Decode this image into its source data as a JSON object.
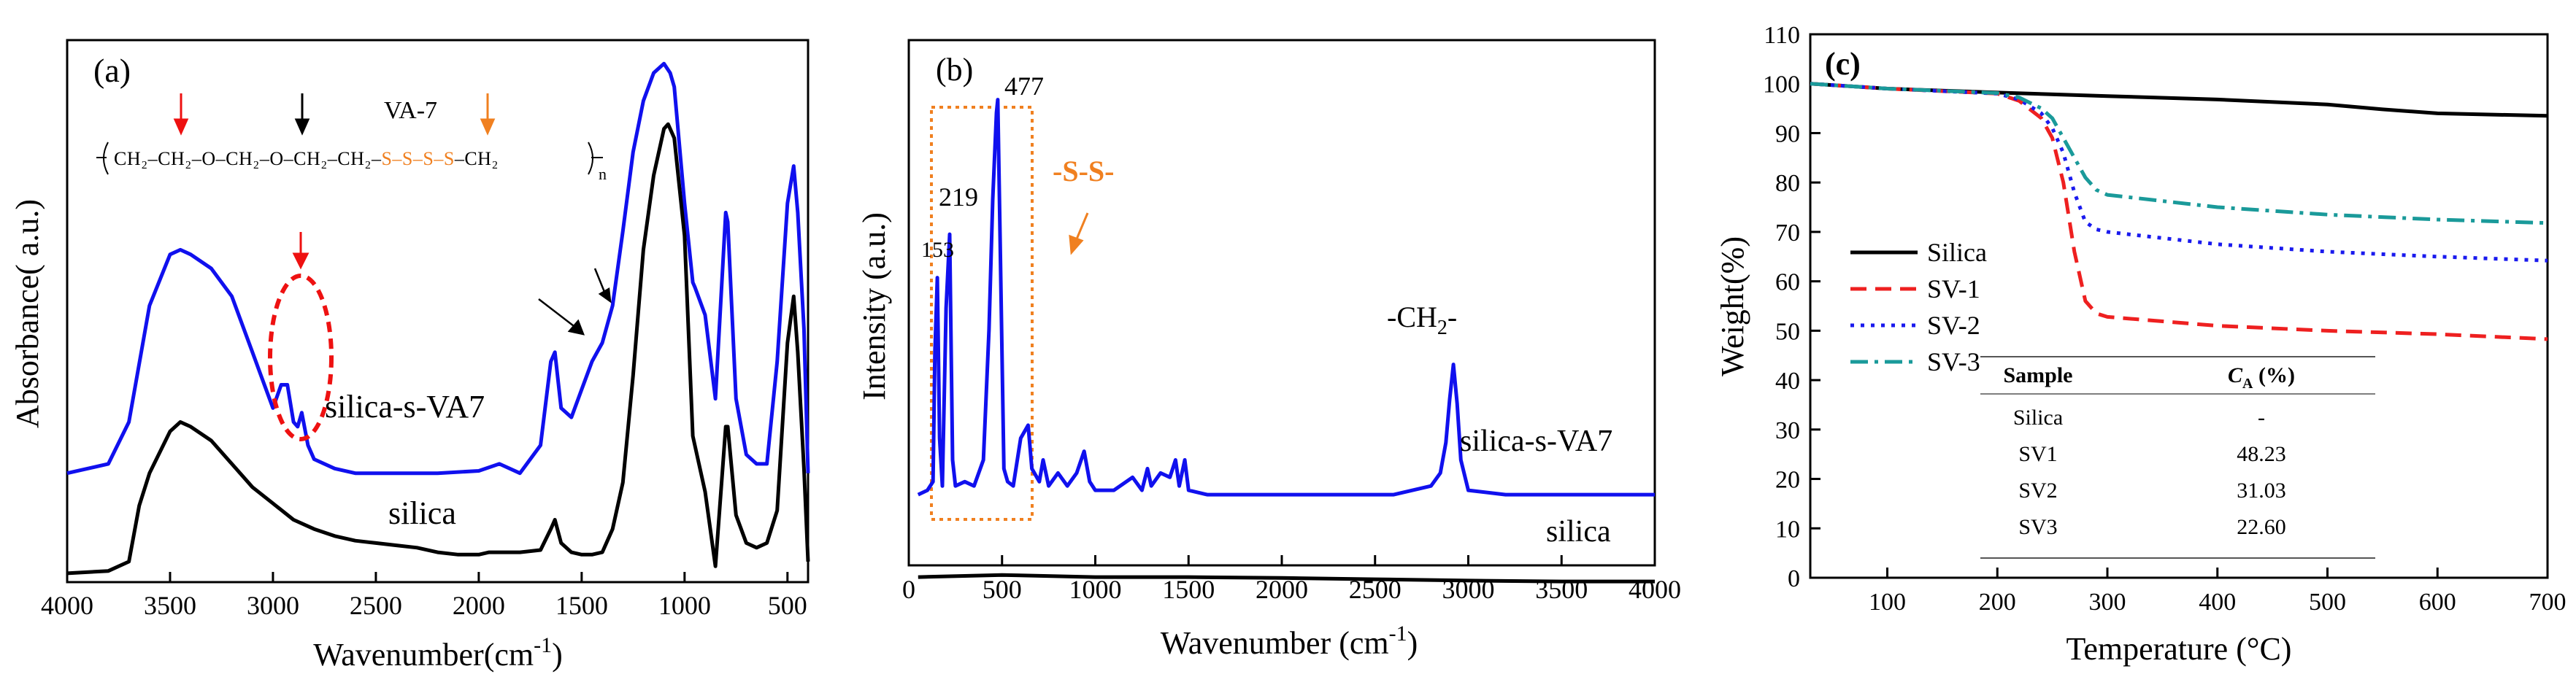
{
  "chart_data": [
    {
      "type": "line",
      "panel_label": "(a)",
      "xlabel": "Wavenumber(cm",
      "xlabel_sup": "-1",
      "xlabel_close": ")",
      "ylabel": "Absorbance( a.u.)",
      "xlim": [
        4000,
        400
      ],
      "x_ticks": [
        4000,
        3500,
        3000,
        2500,
        2000,
        1500,
        1000,
        500
      ],
      "series": [
        {
          "name": "silica-s-VA7",
          "color": "#1010ee",
          "x": [
            4000,
            3800,
            3700,
            3600,
            3500,
            3450,
            3400,
            3300,
            3200,
            3100,
            3000,
            2960,
            2930,
            2900,
            2880,
            2860,
            2830,
            2800,
            2700,
            2600,
            2400,
            2200,
            2000,
            1900,
            1800,
            1700,
            1650,
            1630,
            1600,
            1550,
            1500,
            1450,
            1400,
            1350,
            1300,
            1250,
            1200,
            1150,
            1100,
            1070,
            1050,
            1000,
            960,
            950,
            900,
            850,
            800,
            790,
            750,
            700,
            650,
            600,
            550,
            500,
            470,
            450,
            420,
            400
          ],
          "y": [
            0.14,
            0.16,
            0.25,
            0.5,
            0.61,
            0.62,
            0.61,
            0.58,
            0.52,
            0.4,
            0.28,
            0.33,
            0.33,
            0.25,
            0.24,
            0.27,
            0.2,
            0.17,
            0.15,
            0.14,
            0.14,
            0.14,
            0.145,
            0.16,
            0.14,
            0.2,
            0.38,
            0.4,
            0.28,
            0.26,
            0.32,
            0.38,
            0.42,
            0.5,
            0.66,
            0.83,
            0.94,
            1.0,
            1.02,
            1.0,
            0.97,
            0.72,
            0.55,
            0.54,
            0.48,
            0.3,
            0.7,
            0.68,
            0.3,
            0.18,
            0.16,
            0.16,
            0.38,
            0.72,
            0.8,
            0.7,
            0.45,
            0.14
          ]
        },
        {
          "name": "silica",
          "color": "#000000",
          "x": [
            4000,
            3800,
            3700,
            3650,
            3600,
            3500,
            3450,
            3400,
            3300,
            3200,
            3100,
            3000,
            2900,
            2800,
            2700,
            2600,
            2500,
            2400,
            2300,
            2200,
            2100,
            2000,
            1950,
            1900,
            1870,
            1800,
            1700,
            1650,
            1630,
            1600,
            1550,
            1500,
            1450,
            1400,
            1350,
            1300,
            1250,
            1200,
            1150,
            1100,
            1080,
            1050,
            1000,
            960,
            950,
            900,
            850,
            800,
            790,
            750,
            700,
            650,
            600,
            550,
            500,
            470,
            450,
            420,
            400
          ],
          "y": [
            -0.075,
            -0.07,
            -0.05,
            0.07,
            0.14,
            0.23,
            0.25,
            0.24,
            0.21,
            0.16,
            0.11,
            0.075,
            0.04,
            0.02,
            0.005,
            -0.005,
            -0.01,
            -0.015,
            -0.02,
            -0.03,
            -0.035,
            -0.035,
            -0.03,
            -0.03,
            -0.03,
            -0.03,
            -0.025,
            0.02,
            0.04,
            -0.01,
            -0.03,
            -0.035,
            -0.035,
            -0.03,
            0.02,
            0.12,
            0.35,
            0.62,
            0.78,
            0.88,
            0.89,
            0.86,
            0.65,
            0.22,
            0.2,
            0.1,
            -0.06,
            0.24,
            0.24,
            0.05,
            -0.01,
            -0.02,
            -0.01,
            0.06,
            0.42,
            0.52,
            0.4,
            0.15,
            -0.05
          ]
        }
      ],
      "series_labels": [
        "silica-s-VA7",
        "silica"
      ],
      "annotations": {
        "formula_name": "VA-7",
        "formula": "CH₂–CH₂–O–CH₂–O–CH₂–CH₂–S–S–S–S–CH₂",
        "formula_sub": "n",
        "formula_colors": {
          "red": "#ee1111",
          "black": "#000000",
          "orange": "#f08020"
        }
      }
    },
    {
      "type": "line",
      "panel_label": "(b)",
      "xlabel": "Wavenumber (cm",
      "xlabel_sup": "-1",
      "xlabel_close": ")",
      "ylabel": "Intensity (a.u.)",
      "xlim": [
        0,
        4000
      ],
      "x_ticks": [
        0,
        500,
        1000,
        1500,
        2000,
        2500,
        3000,
        3500,
        4000
      ],
      "series": [
        {
          "name": "silica-s-VA7",
          "color": "#1010ee",
          "x": [
            50,
            100,
            130,
            140,
            153,
            165,
            180,
            200,
            219,
            235,
            250,
            300,
            350,
            400,
            430,
            450,
            470,
            477,
            490,
            510,
            530,
            560,
            600,
            640,
            660,
            700,
            720,
            750,
            800,
            850,
            900,
            940,
            970,
            1000,
            1100,
            1200,
            1250,
            1280,
            1300,
            1350,
            1400,
            1430,
            1450,
            1480,
            1500,
            1600,
            1800,
            2000,
            2200,
            2400,
            2600,
            2800,
            2850,
            2880,
            2900,
            2920,
            2940,
            2960,
            3000,
            3200,
            3400,
            3600,
            3800,
            4000
          ],
          "y": [
            0.02,
            0.03,
            0.05,
            0.35,
            0.52,
            0.15,
            0.04,
            0.45,
            0.62,
            0.1,
            0.04,
            0.05,
            0.04,
            0.1,
            0.4,
            0.7,
            0.9,
            0.93,
            0.6,
            0.08,
            0.05,
            0.04,
            0.15,
            0.18,
            0.08,
            0.05,
            0.1,
            0.04,
            0.07,
            0.04,
            0.07,
            0.12,
            0.05,
            0.03,
            0.03,
            0.06,
            0.03,
            0.08,
            0.04,
            0.07,
            0.06,
            0.1,
            0.04,
            0.1,
            0.03,
            0.02,
            0.02,
            0.02,
            0.02,
            0.02,
            0.02,
            0.04,
            0.07,
            0.14,
            0.24,
            0.32,
            0.23,
            0.1,
            0.03,
            0.02,
            0.02,
            0.02,
            0.02,
            0.02
          ]
        },
        {
          "name": "silica",
          "color": "#000000",
          "x": [
            50,
            500,
            1000,
            1500,
            2000,
            2500,
            3000,
            3500,
            4000
          ],
          "y": [
            -0.17,
            -0.165,
            -0.17,
            -0.17,
            -0.172,
            -0.175,
            -0.178,
            -0.18,
            -0.18
          ]
        }
      ],
      "series_labels": [
        "silica-s-VA7",
        "silica"
      ],
      "peak_labels": [
        "153",
        "219",
        "477"
      ],
      "annotations": {
        "ss_label": "-S-S-",
        "ch2_label": "-CH",
        "ch2_sub": "2",
        "ch2_tail": "-"
      }
    },
    {
      "type": "line",
      "panel_label": "(c)",
      "xlabel": "Temperature (°C)",
      "ylabel": "Weight(%)",
      "xlim": [
        30,
        700
      ],
      "ylim": [
        0,
        110
      ],
      "x_ticks": [
        100,
        200,
        300,
        400,
        500,
        600,
        700
      ],
      "y_ticks": [
        0,
        10,
        20,
        30,
        40,
        50,
        60,
        70,
        80,
        90,
        100,
        110
      ],
      "series": [
        {
          "name": "Silica",
          "color": "#000000",
          "dash": "solid",
          "x": [
            30,
            100,
            200,
            300,
            400,
            500,
            550,
            600,
            700
          ],
          "y": [
            100,
            99.0,
            98.2,
            97.5,
            96.8,
            95.8,
            94.8,
            94.0,
            93.5
          ]
        },
        {
          "name": "SV-1",
          "color": "#ee2020",
          "dash": "dash",
          "x": [
            30,
            100,
            200,
            220,
            240,
            250,
            260,
            270,
            280,
            290,
            300,
            400,
            500,
            600,
            700
          ],
          "y": [
            100,
            99.0,
            98.0,
            96.5,
            93,
            89,
            80,
            66,
            56,
            53.5,
            52.8,
            51,
            50,
            49.3,
            48.3
          ]
        },
        {
          "name": "SV-2",
          "color": "#1a1aee",
          "dash": "dot",
          "x": [
            30,
            100,
            200,
            220,
            240,
            250,
            260,
            270,
            280,
            290,
            300,
            400,
            500,
            600,
            700
          ],
          "y": [
            100,
            99.0,
            98.0,
            96.8,
            94,
            91,
            86,
            78,
            72,
            70.5,
            70,
            67.5,
            66,
            65,
            64.2
          ]
        },
        {
          "name": "SV-3",
          "color": "#1a9a9a",
          "dash": "dashdot",
          "x": [
            30,
            100,
            200,
            220,
            240,
            250,
            260,
            270,
            280,
            290,
            300,
            400,
            500,
            600,
            700
          ],
          "y": [
            100,
            99.0,
            98.1,
            97.2,
            95,
            93,
            89,
            85,
            81,
            78.5,
            77.5,
            75,
            73.5,
            72.5,
            71.8
          ]
        }
      ],
      "table": {
        "headers": [
          "Sample",
          "C",
          "A",
          " (%)"
        ],
        "rows": [
          [
            "Silica",
            "-"
          ],
          [
            "SV1",
            "48.23"
          ],
          [
            "SV2",
            "31.03"
          ],
          [
            "SV3",
            "22.60"
          ]
        ]
      }
    }
  ]
}
